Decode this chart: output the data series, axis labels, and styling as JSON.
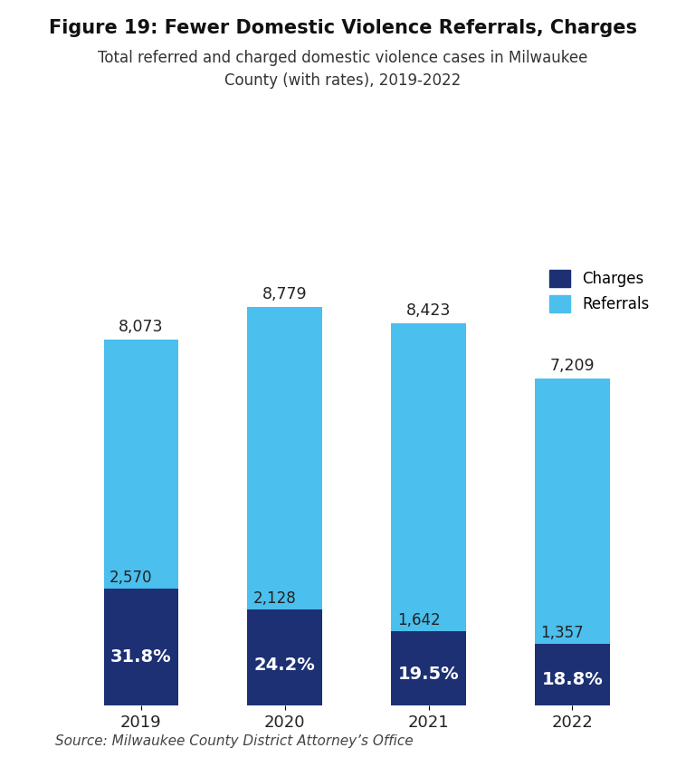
{
  "title_bold": "Figure 19: Fewer Domestic Violence Referrals, Charges",
  "subtitle": "Total referred and charged domestic violence cases in Milwaukee\nCounty (with rates), 2019-2022",
  "years": [
    "2019",
    "2020",
    "2021",
    "2022"
  ],
  "referrals": [
    8073,
    8779,
    8423,
    7209
  ],
  "charges": [
    2570,
    2128,
    1642,
    1357
  ],
  "rates": [
    "31.8%",
    "24.2%",
    "19.5%",
    "18.8%"
  ],
  "color_charges": "#1c3073",
  "color_referrals": "#4bbfed",
  "background": "#ffffff",
  "source": "Source: Milwaukee County District Attorney’s Office",
  "legend_charges": "Charges",
  "legend_referrals": "Referrals",
  "bar_width": 0.52,
  "ylim_max": 9800
}
